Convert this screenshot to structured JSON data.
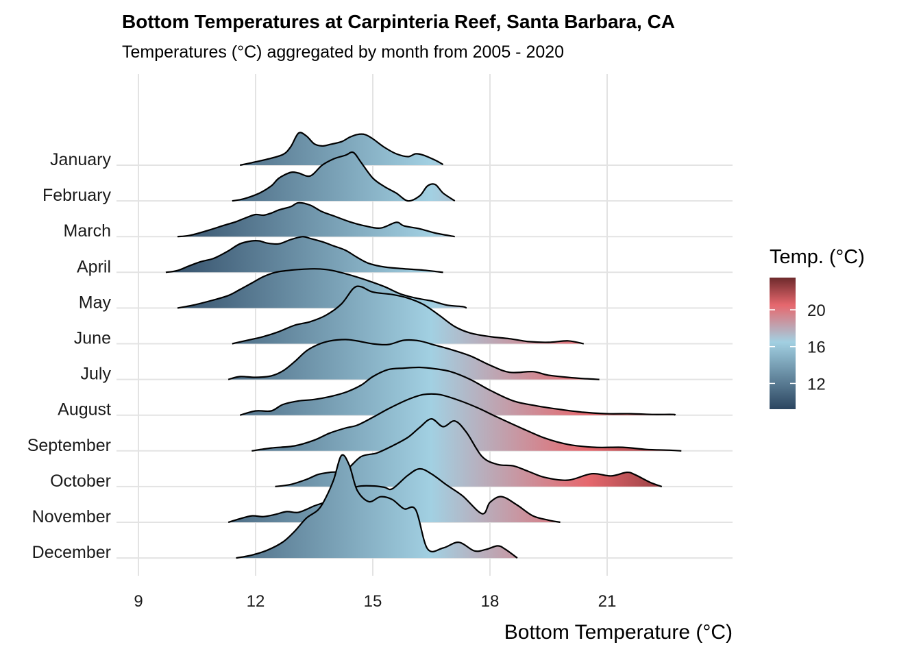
{
  "chart_data": {
    "type": "ridgeline",
    "title": "Bottom Temperatures at Carpinteria Reef, Santa Barbara, CA",
    "subtitle": "Temperatures (°C) aggregated by month from 2005 - 2020",
    "xlabel": "Bottom Temperature (°C)",
    "ylabel": "",
    "xlim": [
      8.5,
      24.0
    ],
    "x_ticks": [
      9,
      12,
      15,
      18,
      21
    ],
    "x_tick_labels": [
      "9",
      "12",
      "15",
      "18",
      "21"
    ],
    "grid": true,
    "legend": {
      "title": "Temp. (°C)",
      "position": "right",
      "range": [
        9.2,
        23.5
      ],
      "ticks": [
        12,
        16,
        20
      ],
      "tick_labels": [
        "12",
        "16",
        "20"
      ],
      "colors": [
        {
          "value": 9.2,
          "color": "#2b4560"
        },
        {
          "value": 16.5,
          "color": "#a2d0e2"
        },
        {
          "value": 20.5,
          "color": "#e6686e"
        },
        {
          "value": 23.5,
          "color": "#6e2a2c"
        }
      ]
    },
    "series": [
      {
        "name": "January",
        "points": [
          [
            11.6,
            0
          ],
          [
            11.9,
            0.07
          ],
          [
            12.3,
            0.17
          ],
          [
            12.7,
            0.3
          ],
          [
            12.9,
            0.52
          ],
          [
            13.1,
            0.9
          ],
          [
            13.3,
            0.82
          ],
          [
            13.5,
            0.6
          ],
          [
            13.7,
            0.54
          ],
          [
            13.9,
            0.58
          ],
          [
            14.2,
            0.66
          ],
          [
            14.4,
            0.78
          ],
          [
            14.6,
            0.86
          ],
          [
            14.8,
            0.86
          ],
          [
            15.0,
            0.74
          ],
          [
            15.3,
            0.5
          ],
          [
            15.6,
            0.32
          ],
          [
            15.9,
            0.24
          ],
          [
            16.1,
            0.32
          ],
          [
            16.3,
            0.28
          ],
          [
            16.6,
            0.14
          ],
          [
            16.8,
            0.02
          ]
        ]
      },
      {
        "name": "February",
        "points": [
          [
            11.4,
            0
          ],
          [
            11.7,
            0.06
          ],
          [
            12.1,
            0.22
          ],
          [
            12.4,
            0.42
          ],
          [
            12.6,
            0.64
          ],
          [
            12.9,
            0.8
          ],
          [
            13.1,
            0.78
          ],
          [
            13.4,
            0.7
          ],
          [
            13.7,
            1.0
          ],
          [
            14.0,
            1.18
          ],
          [
            14.3,
            1.28
          ],
          [
            14.5,
            1.36
          ],
          [
            14.7,
            1.08
          ],
          [
            15.0,
            0.64
          ],
          [
            15.3,
            0.4
          ],
          [
            15.6,
            0.22
          ],
          [
            15.9,
            0.0
          ],
          [
            16.2,
            0.14
          ],
          [
            16.4,
            0.42
          ],
          [
            16.6,
            0.46
          ],
          [
            16.8,
            0.22
          ],
          [
            17.1,
            0.0
          ]
        ]
      },
      {
        "name": "March",
        "points": [
          [
            10.0,
            0
          ],
          [
            10.3,
            0.03
          ],
          [
            10.8,
            0.18
          ],
          [
            11.2,
            0.32
          ],
          [
            11.5,
            0.42
          ],
          [
            11.8,
            0.55
          ],
          [
            12.0,
            0.62
          ],
          [
            12.2,
            0.6
          ],
          [
            12.4,
            0.66
          ],
          [
            12.6,
            0.75
          ],
          [
            12.9,
            0.84
          ],
          [
            13.1,
            0.95
          ],
          [
            13.4,
            0.88
          ],
          [
            13.7,
            0.7
          ],
          [
            14.0,
            0.58
          ],
          [
            14.4,
            0.42
          ],
          [
            14.8,
            0.3
          ],
          [
            15.2,
            0.24
          ],
          [
            15.6,
            0.4
          ],
          [
            15.8,
            0.3
          ],
          [
            16.2,
            0.22
          ],
          [
            16.6,
            0.1
          ],
          [
            17.1,
            0.0
          ]
        ]
      },
      {
        "name": "April",
        "points": [
          [
            9.7,
            0
          ],
          [
            10.0,
            0.05
          ],
          [
            10.3,
            0.18
          ],
          [
            10.6,
            0.3
          ],
          [
            10.9,
            0.38
          ],
          [
            11.1,
            0.48
          ],
          [
            11.3,
            0.6
          ],
          [
            11.6,
            0.8
          ],
          [
            11.9,
            0.88
          ],
          [
            12.1,
            0.88
          ],
          [
            12.3,
            0.82
          ],
          [
            12.6,
            0.8
          ],
          [
            12.9,
            0.92
          ],
          [
            13.2,
            1.0
          ],
          [
            13.4,
            0.95
          ],
          [
            13.7,
            0.86
          ],
          [
            14.0,
            0.74
          ],
          [
            14.3,
            0.62
          ],
          [
            14.6,
            0.42
          ],
          [
            14.9,
            0.25
          ],
          [
            15.3,
            0.15
          ],
          [
            15.8,
            0.1
          ],
          [
            16.3,
            0.06
          ],
          [
            16.8,
            0.0
          ]
        ]
      },
      {
        "name": "May",
        "points": [
          [
            10.0,
            0
          ],
          [
            10.4,
            0.08
          ],
          [
            10.9,
            0.22
          ],
          [
            11.3,
            0.35
          ],
          [
            11.6,
            0.52
          ],
          [
            11.9,
            0.7
          ],
          [
            12.2,
            0.88
          ],
          [
            12.5,
            1.0
          ],
          [
            12.8,
            1.05
          ],
          [
            13.1,
            1.08
          ],
          [
            13.5,
            1.1
          ],
          [
            13.8,
            1.08
          ],
          [
            14.1,
            1.02
          ],
          [
            14.5,
            0.9
          ],
          [
            14.9,
            0.76
          ],
          [
            15.3,
            0.6
          ],
          [
            15.7,
            0.4
          ],
          [
            16.1,
            0.28
          ],
          [
            16.5,
            0.2
          ],
          [
            16.9,
            0.08
          ],
          [
            17.3,
            0.04
          ],
          [
            17.4,
            0.0
          ]
        ]
      },
      {
        "name": "June",
        "points": [
          [
            11.4,
            0
          ],
          [
            11.8,
            0.1
          ],
          [
            12.2,
            0.2
          ],
          [
            12.6,
            0.34
          ],
          [
            13.0,
            0.52
          ],
          [
            13.4,
            0.62
          ],
          [
            13.8,
            0.8
          ],
          [
            14.2,
            1.12
          ],
          [
            14.5,
            1.55
          ],
          [
            14.7,
            1.6
          ],
          [
            15.0,
            1.45
          ],
          [
            15.5,
            1.38
          ],
          [
            15.9,
            1.28
          ],
          [
            16.3,
            1.1
          ],
          [
            16.7,
            0.8
          ],
          [
            17.1,
            0.48
          ],
          [
            17.5,
            0.3
          ],
          [
            18.0,
            0.2
          ],
          [
            18.5,
            0.14
          ],
          [
            19.0,
            0.06
          ],
          [
            19.5,
            0.04
          ],
          [
            20.0,
            0.08
          ],
          [
            20.4,
            0.0
          ]
        ]
      },
      {
        "name": "July",
        "points": [
          [
            11.3,
            0
          ],
          [
            11.6,
            0.08
          ],
          [
            12.0,
            0.06
          ],
          [
            12.4,
            0.1
          ],
          [
            12.7,
            0.24
          ],
          [
            13.0,
            0.5
          ],
          [
            13.3,
            0.8
          ],
          [
            13.6,
            0.98
          ],
          [
            13.9,
            1.08
          ],
          [
            14.3,
            1.12
          ],
          [
            14.6,
            1.08
          ],
          [
            15.0,
            1.0
          ],
          [
            15.4,
            0.98
          ],
          [
            15.8,
            1.1
          ],
          [
            16.2,
            1.08
          ],
          [
            16.6,
            0.96
          ],
          [
            17.0,
            0.84
          ],
          [
            17.5,
            0.66
          ],
          [
            18.0,
            0.4
          ],
          [
            18.5,
            0.2
          ],
          [
            19.1,
            0.22
          ],
          [
            19.5,
            0.12
          ],
          [
            20.2,
            0.04
          ],
          [
            20.8,
            0.0
          ]
        ]
      },
      {
        "name": "August",
        "points": [
          [
            11.6,
            0
          ],
          [
            12.0,
            0.12
          ],
          [
            12.4,
            0.12
          ],
          [
            12.7,
            0.3
          ],
          [
            13.1,
            0.4
          ],
          [
            13.5,
            0.44
          ],
          [
            13.9,
            0.52
          ],
          [
            14.3,
            0.64
          ],
          [
            14.7,
            0.84
          ],
          [
            15.0,
            1.08
          ],
          [
            15.4,
            1.28
          ],
          [
            15.8,
            1.32
          ],
          [
            16.2,
            1.34
          ],
          [
            16.6,
            1.3
          ],
          [
            17.0,
            1.22
          ],
          [
            17.5,
            1.0
          ],
          [
            18.0,
            0.7
          ],
          [
            18.6,
            0.4
          ],
          [
            19.2,
            0.26
          ],
          [
            19.8,
            0.16
          ],
          [
            20.4,
            0.08
          ],
          [
            21.0,
            0.04
          ],
          [
            21.6,
            0.04
          ],
          [
            22.2,
            0.02
          ],
          [
            22.7,
            0.02
          ],
          [
            22.7,
            0.0
          ]
        ]
      },
      {
        "name": "September",
        "points": [
          [
            11.9,
            0
          ],
          [
            12.4,
            0.08
          ],
          [
            13.0,
            0.14
          ],
          [
            13.5,
            0.3
          ],
          [
            13.9,
            0.5
          ],
          [
            14.3,
            0.64
          ],
          [
            14.6,
            0.72
          ],
          [
            15.0,
            0.94
          ],
          [
            15.4,
            1.18
          ],
          [
            15.9,
            1.44
          ],
          [
            16.3,
            1.58
          ],
          [
            16.7,
            1.58
          ],
          [
            17.2,
            1.42
          ],
          [
            17.7,
            1.2
          ],
          [
            18.2,
            0.94
          ],
          [
            18.8,
            0.64
          ],
          [
            19.4,
            0.36
          ],
          [
            20.0,
            0.18
          ],
          [
            20.7,
            0.1
          ],
          [
            21.4,
            0.1
          ],
          [
            22.0,
            0.04
          ],
          [
            22.6,
            0.02
          ],
          [
            22.9,
            0.0
          ]
        ]
      },
      {
        "name": "October",
        "points": [
          [
            12.5,
            0
          ],
          [
            12.9,
            0.06
          ],
          [
            13.3,
            0.2
          ],
          [
            13.6,
            0.34
          ],
          [
            13.9,
            0.4
          ],
          [
            14.3,
            0.46
          ],
          [
            14.7,
            0.84
          ],
          [
            15.1,
            0.94
          ],
          [
            15.5,
            1.14
          ],
          [
            15.9,
            1.38
          ],
          [
            16.2,
            1.66
          ],
          [
            16.5,
            1.9
          ],
          [
            16.8,
            1.68
          ],
          [
            17.1,
            1.84
          ],
          [
            17.4,
            1.52
          ],
          [
            17.8,
            0.84
          ],
          [
            18.2,
            0.62
          ],
          [
            18.6,
            0.58
          ],
          [
            19.0,
            0.42
          ],
          [
            19.4,
            0.26
          ],
          [
            20.0,
            0.18
          ],
          [
            20.6,
            0.36
          ],
          [
            21.1,
            0.3
          ],
          [
            21.5,
            0.4
          ],
          [
            21.7,
            0.34
          ],
          [
            22.1,
            0.12
          ],
          [
            22.4,
            0.0
          ]
        ]
      },
      {
        "name": "November",
        "points": [
          [
            11.3,
            0
          ],
          [
            11.6,
            0.1
          ],
          [
            11.9,
            0.18
          ],
          [
            12.2,
            0.16
          ],
          [
            12.5,
            0.22
          ],
          [
            12.8,
            0.3
          ],
          [
            13.1,
            0.28
          ],
          [
            13.5,
            0.46
          ],
          [
            13.8,
            0.58
          ],
          [
            14.0,
            0.76
          ],
          [
            14.3,
            0.8
          ],
          [
            14.6,
            1.0
          ],
          [
            15.0,
            1.02
          ],
          [
            15.3,
            0.98
          ],
          [
            15.5,
            0.94
          ],
          [
            15.9,
            1.32
          ],
          [
            16.2,
            1.5
          ],
          [
            16.5,
            1.36
          ],
          [
            16.9,
            1.04
          ],
          [
            17.3,
            0.74
          ],
          [
            17.8,
            0.24
          ],
          [
            18.0,
            0.56
          ],
          [
            18.3,
            0.72
          ],
          [
            18.7,
            0.48
          ],
          [
            19.1,
            0.18
          ],
          [
            19.5,
            0.06
          ],
          [
            19.8,
            0.0
          ]
        ]
      },
      {
        "name": "December",
        "points": [
          [
            11.5,
            0
          ],
          [
            11.9,
            0.08
          ],
          [
            12.3,
            0.22
          ],
          [
            12.7,
            0.45
          ],
          [
            13.0,
            0.75
          ],
          [
            13.3,
            1.12
          ],
          [
            13.6,
            1.35
          ],
          [
            13.8,
            1.7
          ],
          [
            14.0,
            2.2
          ],
          [
            14.2,
            2.88
          ],
          [
            14.4,
            2.6
          ],
          [
            14.6,
            1.9
          ],
          [
            14.9,
            1.58
          ],
          [
            15.2,
            1.72
          ],
          [
            15.5,
            1.64
          ],
          [
            15.8,
            1.38
          ],
          [
            16.1,
            1.35
          ],
          [
            16.4,
            0.26
          ],
          [
            16.8,
            0.28
          ],
          [
            17.2,
            0.44
          ],
          [
            17.6,
            0.2
          ],
          [
            17.9,
            0.24
          ],
          [
            18.2,
            0.34
          ],
          [
            18.4,
            0.24
          ],
          [
            18.7,
            0.0
          ]
        ]
      }
    ]
  }
}
